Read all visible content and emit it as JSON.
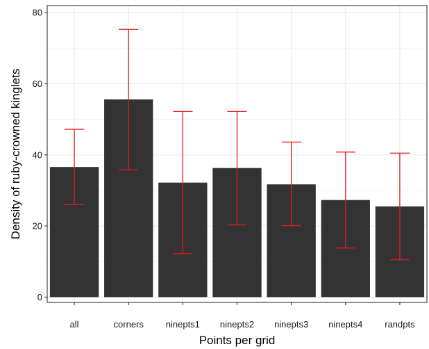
{
  "chart_data": {
    "type": "bar",
    "title": "",
    "xlabel": "Points per grid",
    "ylabel": "Density of ruby-crowned kinglets",
    "categories": [
      "all",
      "corners",
      "ninepts1",
      "ninepts2",
      "ninepts3",
      "ninepts4",
      "randpts"
    ],
    "values": [
      36.6,
      55.6,
      32.2,
      36.3,
      31.7,
      27.3,
      25.5
    ],
    "error_lower": [
      26.0,
      35.8,
      12.2,
      20.3,
      20.1,
      13.8,
      10.5
    ],
    "error_upper": [
      47.2,
      75.3,
      52.2,
      52.2,
      43.6,
      40.8,
      40.5
    ],
    "ylim": [
      -1.5,
      82
    ],
    "yticks": [
      0,
      20,
      40,
      60,
      80
    ],
    "grid": true,
    "legend": "none",
    "colors": {
      "bar": "#333333",
      "error_bar": "#e31a1c",
      "grid": "#ebebeb",
      "panel_border": "#333333"
    }
  }
}
